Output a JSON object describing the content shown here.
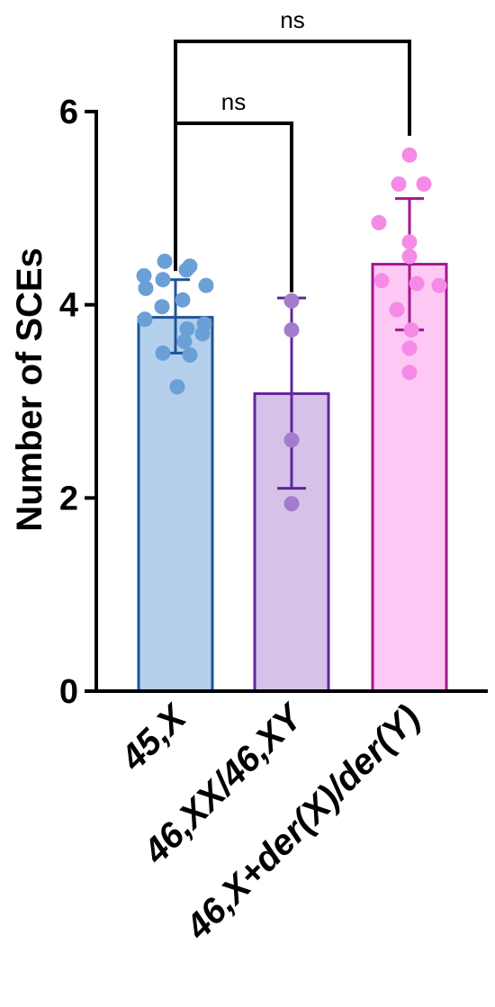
{
  "chart_data": {
    "type": "bar",
    "ylabel": "Number of SCEs",
    "ylim": [
      0,
      6
    ],
    "yticks": [
      0,
      2,
      4,
      6
    ],
    "categories": [
      "45,X",
      "46,XX/46,XY",
      "46,X+der(X)/der(Y)"
    ],
    "values": [
      3.87,
      3.08,
      4.42
    ],
    "error_low": [
      3.5,
      2.1,
      3.74
    ],
    "error_high": [
      4.26,
      4.07,
      5.1
    ],
    "points": [
      [
        4.45,
        4.4,
        4.36,
        4.3,
        4.26,
        4.2,
        4.17,
        4.05,
        3.98,
        3.85,
        3.8,
        3.75,
        3.7,
        3.62,
        3.5,
        3.48,
        3.15
      ],
      [
        4.04,
        3.74,
        2.6,
        1.94
      ],
      [
        5.55,
        5.25,
        5.25,
        4.85,
        4.65,
        4.5,
        4.25,
        4.2,
        4.22,
        3.95,
        3.74,
        3.55,
        3.3
      ]
    ],
    "colors": {
      "fill": [
        "#b3cfec",
        "#d6c1e8",
        "#fdc8f4"
      ],
      "stroke": [
        "#1f5496",
        "#60269e",
        "#a4168e"
      ],
      "point": [
        "#6aa0d6",
        "#a37dcb",
        "#f58be6"
      ]
    },
    "comparisons": [
      {
        "from": 0,
        "to": 1,
        "label": "ns"
      },
      {
        "from": 0,
        "to": 2,
        "label": "ns"
      }
    ]
  }
}
